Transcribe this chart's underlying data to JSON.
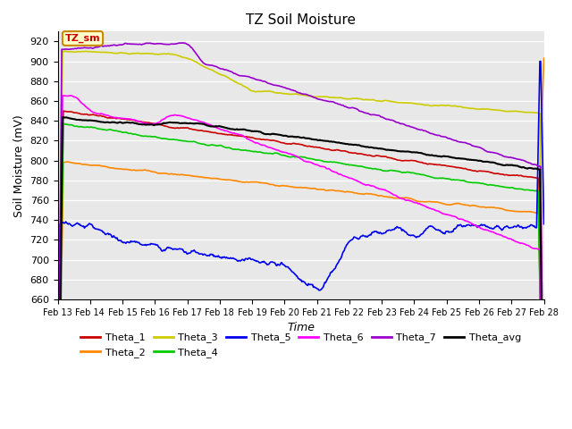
{
  "title": "TZ Soil Moisture",
  "xlabel": "Time",
  "ylabel": "Soil Moisture (mV)",
  "ylim": [
    660,
    930
  ],
  "yticks": [
    660,
    680,
    700,
    720,
    740,
    760,
    780,
    800,
    820,
    840,
    860,
    880,
    900,
    920
  ],
  "date_labels": [
    "Feb 13",
    "Feb 14",
    "Feb 15",
    "Feb 16",
    "Feb 17",
    "Feb 18",
    "Feb 19",
    "Feb 20",
    "Feb 21",
    "Feb 22",
    "Feb 23",
    "Feb 24",
    "Feb 25",
    "Feb 26",
    "Feb 27",
    "Feb 28"
  ],
  "n_points": 600,
  "series_colors": {
    "Theta_1": "#cc0000",
    "Theta_2": "#ff8800",
    "Theta_3": "#cccc00",
    "Theta_4": "#00cc00",
    "Theta_5": "#0000ee",
    "Theta_6": "#ff00ff",
    "Theta_7": "#9900cc",
    "Theta_avg": "#000000"
  },
  "annotation_text": "TZ_sm",
  "annotation_color": "#cc0000",
  "annotation_bg": "#ffffcc",
  "annotation_edge": "#cc8800",
  "background_color": "#e8e8e8",
  "grid_color": "#ffffff",
  "fig_bg": "#ffffff"
}
